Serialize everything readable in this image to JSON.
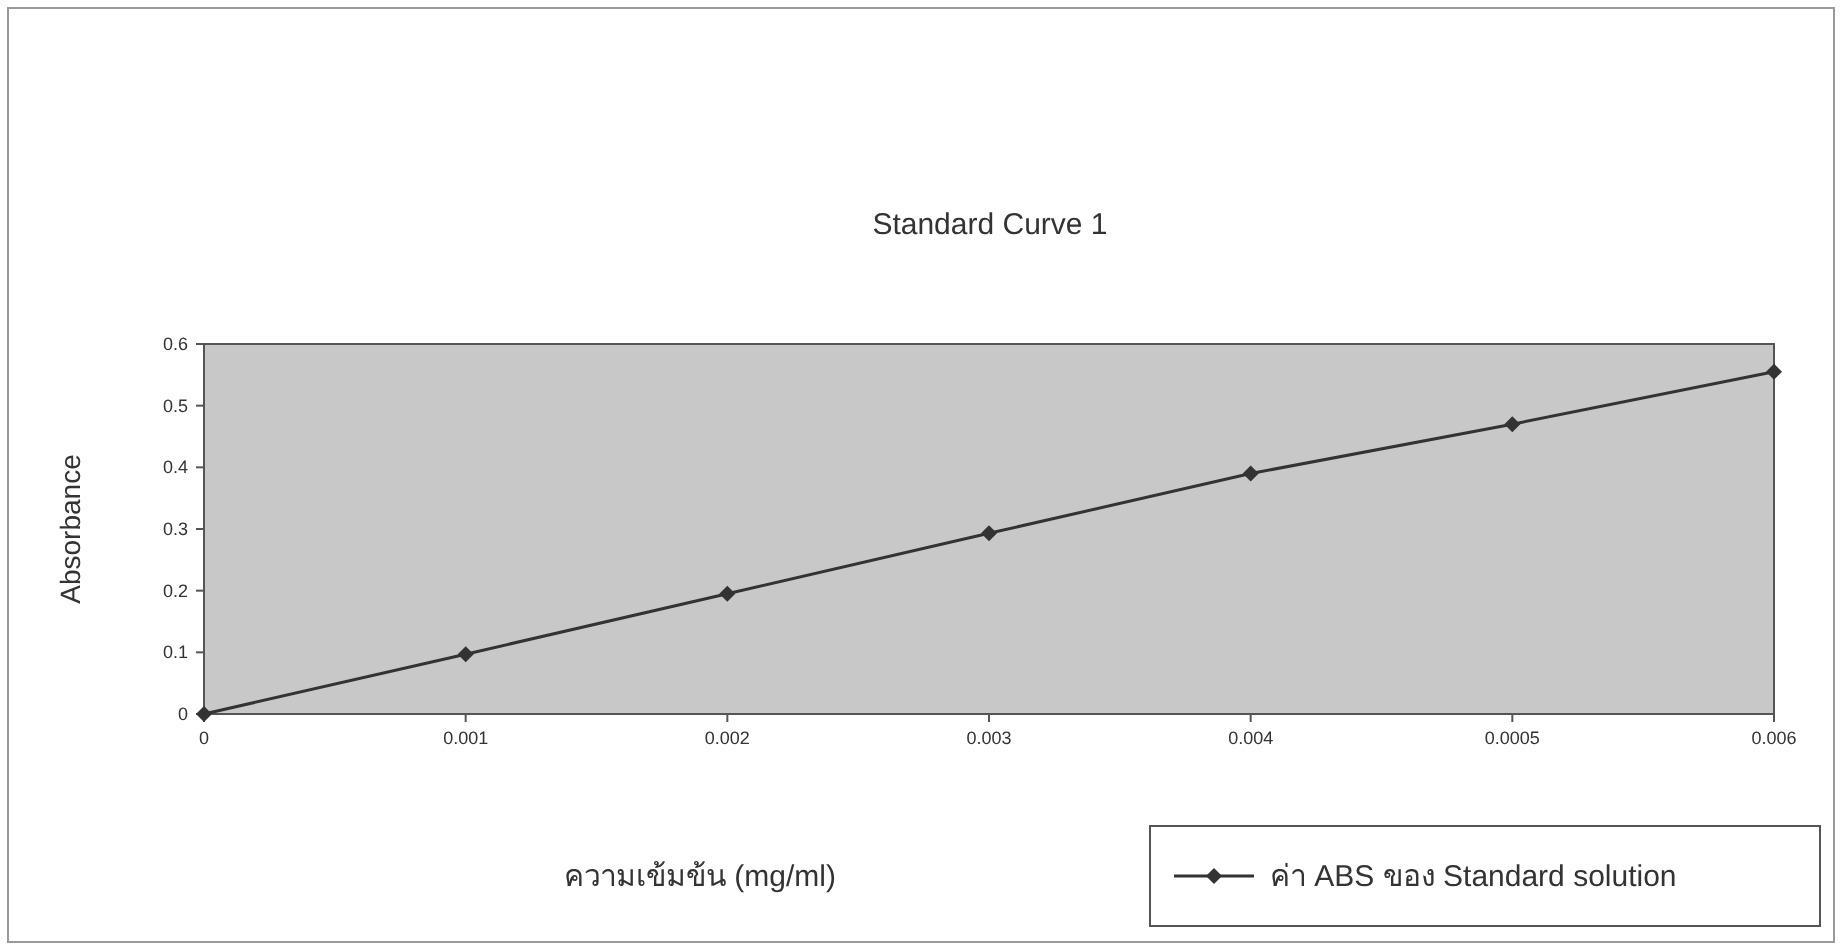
{
  "chart_data": {
    "type": "line",
    "title": "Standard Curve 1",
    "xlabel": "ความเข้มข้น (mg/ml)",
    "ylabel": "Absorbance",
    "categories": [
      "0",
      "0.001",
      "0.002",
      "0.003",
      "0.004",
      "0.0005",
      "0.006"
    ],
    "series": [
      {
        "name": "ค่า ABS ของ Standard solution",
        "color": "#333333",
        "values": [
          0,
          0.097,
          0.195,
          0.293,
          0.39,
          0.47,
          0.555
        ]
      }
    ],
    "ylim": [
      0,
      0.6
    ],
    "yticks": [
      0,
      0.1,
      0.2,
      0.3,
      0.4,
      0.5,
      0.6
    ],
    "marker": "diamond",
    "legend": "bottom right",
    "grid": false
  }
}
